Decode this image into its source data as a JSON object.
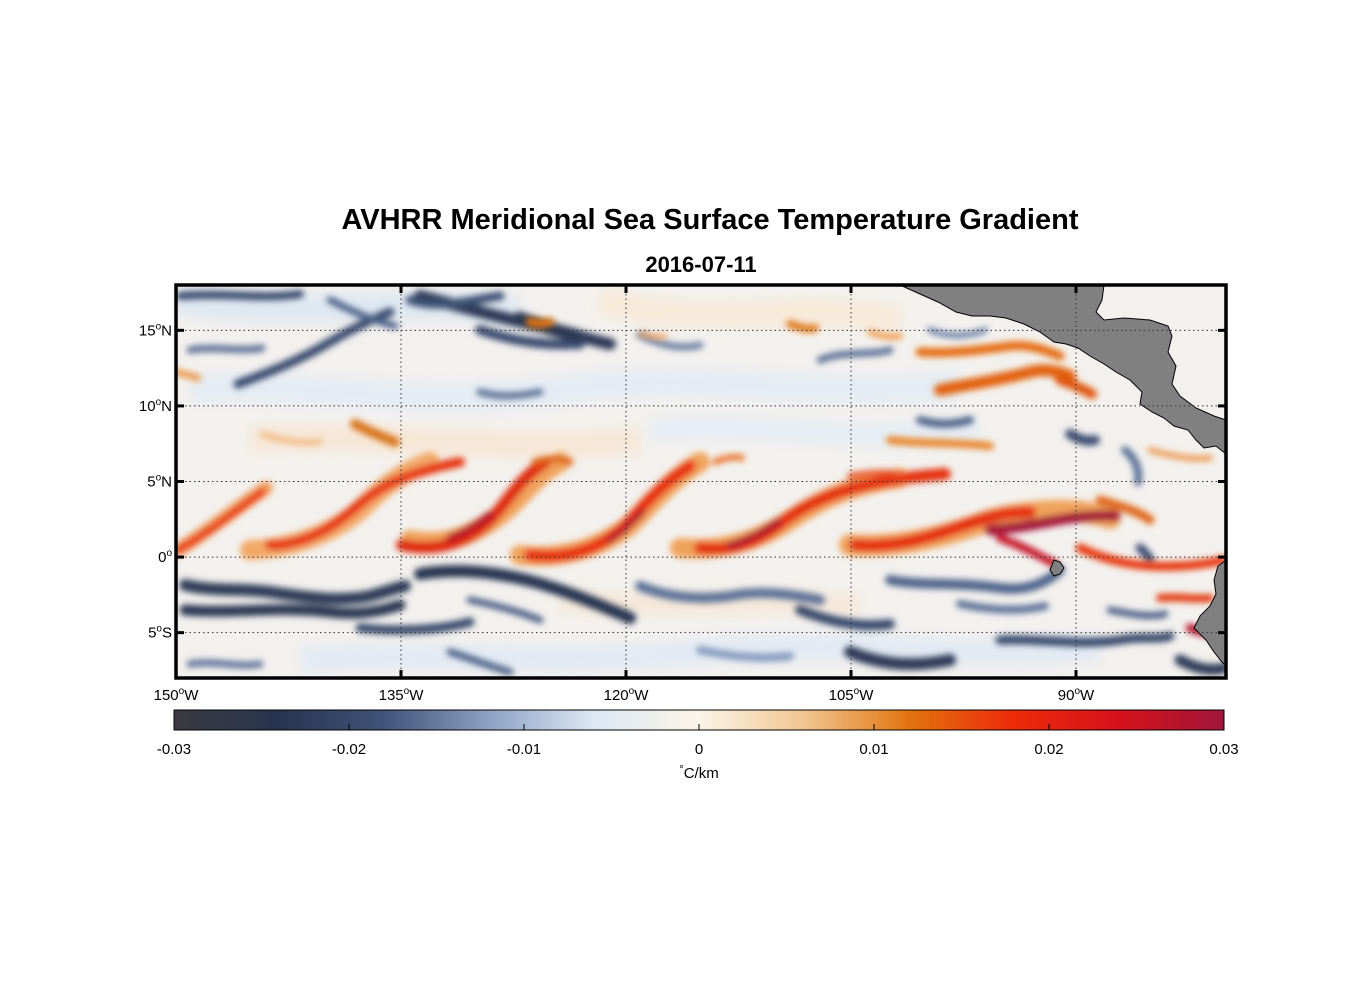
{
  "title": "AVHRR Meridional Sea Surface Temperature Gradient",
  "subtitle": "2016-07-11",
  "map": {
    "lat_range": [
      -8,
      18
    ],
    "lon_range": [
      -150,
      -80
    ],
    "lat_labels": [
      {
        "lat": 15,
        "deg": "15",
        "hemi": "N"
      },
      {
        "lat": 10,
        "deg": "10",
        "hemi": "N"
      },
      {
        "lat": 5,
        "deg": "5",
        "hemi": "N"
      },
      {
        "lat": 0,
        "deg": "0",
        "hemi": ""
      },
      {
        "lat": -5,
        "deg": "5",
        "hemi": "S"
      }
    ],
    "lon_labels": [
      {
        "lon": -150,
        "deg": "150",
        "hemi": "W"
      },
      {
        "lon": -135,
        "deg": "135",
        "hemi": "W"
      },
      {
        "lon": -120,
        "deg": "120",
        "hemi": "W"
      },
      {
        "lon": -105,
        "deg": "105",
        "hemi": "W"
      },
      {
        "lon": -90,
        "deg": "90",
        "hemi": "W"
      }
    ],
    "land_color": "#808080"
  },
  "colorbar": {
    "range": [
      -0.03,
      0.03
    ],
    "ticks": [
      {
        "value": -0.03,
        "label": "-0.03"
      },
      {
        "value": -0.02,
        "label": "-0.02"
      },
      {
        "value": -0.01,
        "label": "-0.01"
      },
      {
        "value": 0,
        "label": "0"
      },
      {
        "value": 0.01,
        "label": "0.01"
      },
      {
        "value": 0.02,
        "label": "0.02"
      },
      {
        "value": 0.03,
        "label": "0.03"
      }
    ],
    "unit_symbol": "°",
    "unit": "C/km",
    "colors": [
      "#3a3a40",
      "#27344f",
      "#3f5478",
      "#8ba2c4",
      "#dde8f4",
      "#fbf5e8",
      "#f1c690",
      "#e2740f",
      "#ed2a0a",
      "#d5121c",
      "#a0163a"
    ]
  }
}
